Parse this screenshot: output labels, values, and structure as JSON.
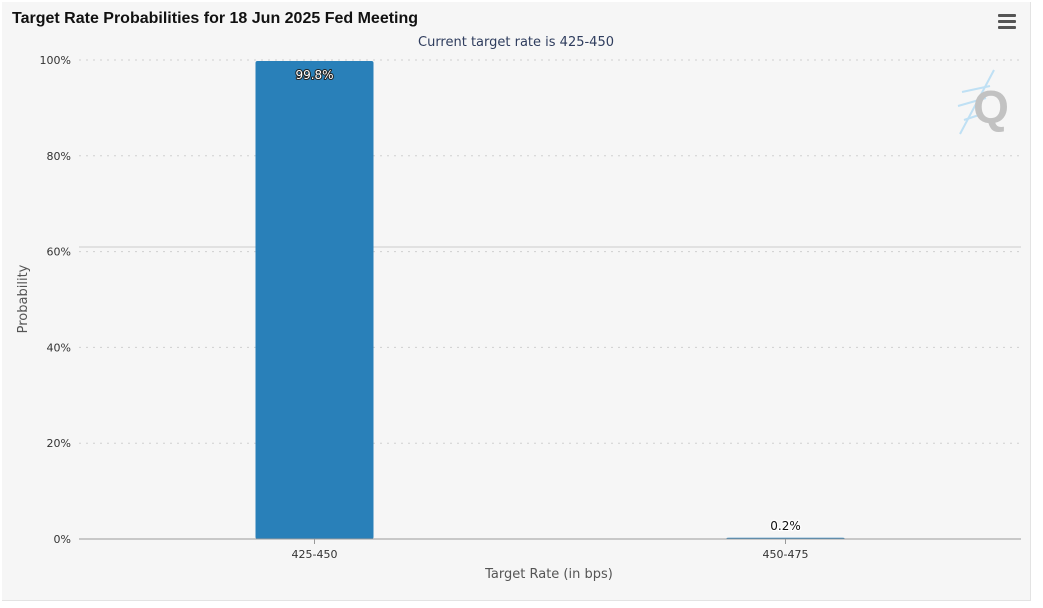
{
  "title": "Target Rate Probabilities for 18 Jun 2025 Fed Meeting",
  "menu_icon": "hamburger-menu-icon",
  "watermark": {
    "icon": "q-logo-icon",
    "letter": "Q"
  },
  "chart_data": {
    "type": "bar",
    "title": "Target Rate Probabilities for 18 Jun 2025 Fed Meeting",
    "subtitle": "Current target rate is 425-450",
    "xlabel": "Target Rate (in bps)",
    "ylabel": "Probability",
    "categories": [
      "425-450",
      "450-475"
    ],
    "values": [
      99.8,
      0.2
    ],
    "data_labels": [
      "99.8%",
      "0.2%"
    ],
    "ylim": [
      0,
      100
    ],
    "yticks": [
      0,
      20,
      40,
      60,
      80,
      100
    ],
    "ytick_labels": [
      "0%",
      "20%",
      "40%",
      "60%",
      "80%",
      "100%"
    ],
    "grid": true,
    "bar_color": "#2980b9"
  }
}
